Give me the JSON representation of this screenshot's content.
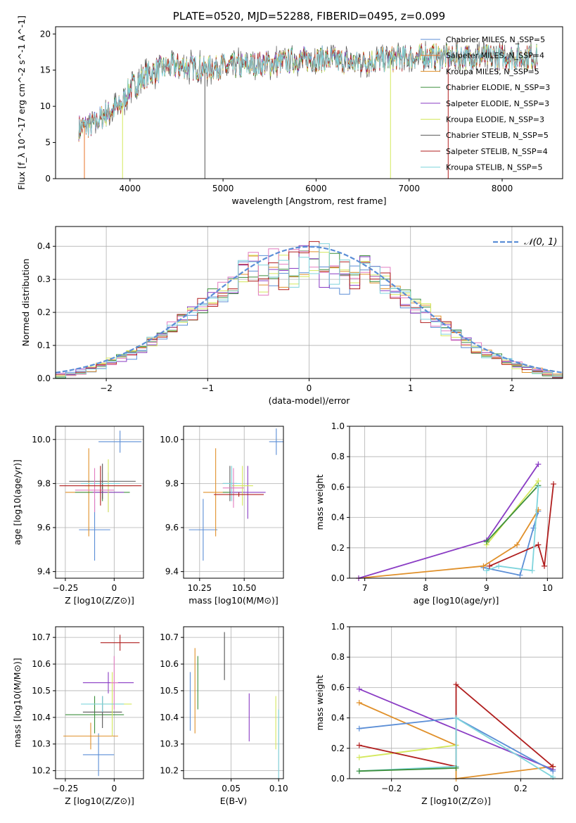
{
  "chart_data": [
    {
      "type": "line",
      "panel": "spectrum",
      "title": "PLATE=0520, MJD=52288, FIBERID=0495, z=0.099",
      "xlabel": "wavelength [Angstrom, rest frame]",
      "ylabel": "Flux [f_λ 10^-17 erg cm^-2 s^-1 A^-1]",
      "xlim": [
        3200,
        8650
      ],
      "ylim": [
        0,
        21
      ],
      "xticks": [
        4000,
        5000,
        6000,
        7000,
        8000
      ],
      "yticks": [
        0,
        5,
        10,
        15,
        20
      ],
      "grid": false,
      "legend_position": "upper-right",
      "continuum": {
        "x": [
          3450,
          3500,
          3600,
          3700,
          3800,
          3900,
          4000,
          4100,
          4200,
          4400,
          4600,
          4800,
          5000,
          5200,
          5400,
          5600,
          5800,
          6000,
          6200,
          6400,
          6600,
          6800,
          7000,
          7200,
          7400,
          7600,
          7800,
          8000,
          8200,
          8380
        ],
        "y": [
          7.0,
          7.2,
          7.5,
          8.5,
          9.5,
          10.0,
          12.5,
          13.5,
          14.5,
          15.5,
          15.5,
          15.2,
          15.5,
          15.6,
          15.8,
          16.0,
          16.5,
          16.5,
          16.4,
          16.0,
          16.3,
          16.5,
          16.8,
          17.0,
          16.8,
          16.9,
          16.8,
          16.8,
          16.8,
          16.9
        ]
      },
      "series": [
        {
          "name": "Chabrier MILES, N_SSP=5"
        },
        {
          "name": "Salpeter MILES, N_SSP=4"
        },
        {
          "name": "Kroupa MILES, N_SSP=5"
        },
        {
          "name": "Chabrier ELODIE, N_SSP=3"
        },
        {
          "name": "Salpeter ELODIE, N_SSP=3"
        },
        {
          "name": "Kroupa ELODIE, N_SSP=3"
        },
        {
          "name": "Chabrier STELIB, N_SSP=5"
        },
        {
          "name": "Salpeter STELIB, N_SSP=4"
        },
        {
          "name": "Kroupa STELIB, N_SSP=5"
        }
      ]
    },
    {
      "type": "line",
      "panel": "residual-histogram",
      "xlabel": "(data-model)/error",
      "ylabel": "Normed distribution",
      "xlim": [
        -2.5,
        2.5
      ],
      "ylim": [
        0,
        0.46
      ],
      "xticks": [
        -2,
        -1,
        0,
        1,
        2
      ],
      "yticks": [
        0.0,
        0.1,
        0.2,
        0.3,
        0.4
      ],
      "grid": true,
      "legend_position": "upper-right",
      "reference_curve": {
        "name": "𝒩(0, 1)",
        "mean": 0,
        "sigma": 1
      }
    },
    {
      "type": "scatter",
      "panel": "age-vs-Z",
      "xlabel": "Z [log10(Z/Z⊙)]",
      "ylabel": "age [log10(age/yr)]",
      "xlim": [
        -0.3,
        0.15
      ],
      "ylim": [
        9.37,
        10.06
      ],
      "xticks": [
        -0.25,
        0.0
      ],
      "yticks": [
        9.4,
        9.6,
        9.8,
        10.0
      ],
      "grid": true,
      "points": [
        {
          "x": -0.1,
          "y": 9.59,
          "xerr": 0.08,
          "yerr": 0.14
        },
        {
          "x": -0.13,
          "y": 9.76,
          "xerr": 0.12,
          "yerr": 0.2
        },
        {
          "x": -0.06,
          "y": 9.76,
          "xerr": 0.14,
          "yerr": 0.04
        },
        {
          "x": -0.06,
          "y": 9.81,
          "xerr": 0.17,
          "yerr": 0.08
        },
        {
          "x": -0.03,
          "y": 9.76,
          "xerr": 0.08,
          "yerr": 0.09
        },
        {
          "x": -0.03,
          "y": 9.79,
          "xerr": 0.12,
          "yerr": 0.12
        },
        {
          "x": -0.07,
          "y": 9.8,
          "xerr": 0.1,
          "yerr": 0.02
        },
        {
          "x": -0.1,
          "y": 9.77,
          "xerr": 0.1,
          "yerr": 0.1
        },
        {
          "x": -0.07,
          "y": 9.79,
          "xerr": 0.21,
          "yerr": 0.09
        },
        {
          "x": 0.03,
          "y": 9.99,
          "xerr": 0.11,
          "yerr": 0.05
        }
      ]
    },
    {
      "type": "scatter",
      "panel": "age-vs-mass",
      "xlabel": "mass [log10(M/M⊙)]",
      "ylabel": "",
      "xlim": [
        10.16,
        10.72
      ],
      "ylim": [
        9.37,
        10.06
      ],
      "xticks": [
        10.25,
        10.5
      ],
      "yticks": [
        9.4,
        9.6,
        9.8,
        10.0
      ],
      "grid": true,
      "points": [
        {
          "x": 10.27,
          "y": 9.59,
          "xerr": 0.08,
          "yerr": 0.14
        },
        {
          "x": 10.34,
          "y": 9.76,
          "xerr": 0.07,
          "yerr": 0.2
        },
        {
          "x": 10.44,
          "y": 9.76,
          "xerr": 0.06,
          "yerr": 0.04
        },
        {
          "x": 10.42,
          "y": 9.8,
          "xerr": 0.04,
          "yerr": 0.08
        },
        {
          "x": 10.52,
          "y": 9.76,
          "xerr": 0.1,
          "yerr": 0.12
        },
        {
          "x": 10.49,
          "y": 9.79,
          "xerr": 0.06,
          "yerr": 0.09
        },
        {
          "x": 10.43,
          "y": 9.8,
          "xerr": 0.05,
          "yerr": 0.08
        },
        {
          "x": 10.44,
          "y": 9.78,
          "xerr": 0.06,
          "yerr": 0.09
        },
        {
          "x": 10.47,
          "y": 9.75,
          "xerr": 0.14,
          "yerr": 0.01
        },
        {
          "x": 10.68,
          "y": 9.99,
          "xerr": 0.04,
          "yerr": 0.06
        }
      ]
    },
    {
      "type": "line",
      "panel": "mass-weight-vs-age",
      "xlabel": "age [log10(age/yr)]",
      "ylabel": "mass weight",
      "xlim": [
        6.75,
        10.25
      ],
      "ylim": [
        0,
        1.0
      ],
      "xticks": [
        7,
        8,
        9,
        10
      ],
      "yticks": [
        0.0,
        0.2,
        0.4,
        0.6,
        0.8,
        1.0
      ],
      "grid": true,
      "series": [
        {
          "name": "Chabrier MILES",
          "x": [
            8.95,
            9.55,
            9.77,
            9.85
          ],
          "y": [
            0.07,
            0.02,
            0.33,
            0.44
          ]
        },
        {
          "name": "Kroupa MILES",
          "x": [
            6.9,
            8.95,
            9.5,
            9.85
          ],
          "y": [
            0.0,
            0.08,
            0.22,
            0.45
          ]
        },
        {
          "name": "Salpeter ELODIE",
          "x": [
            6.9,
            9.0,
            9.85
          ],
          "y": [
            0.0,
            0.25,
            0.75
          ]
        },
        {
          "name": "Kroupa ELODIE",
          "x": [
            9.0,
            9.85
          ],
          "y": [
            0.22,
            0.64
          ]
        },
        {
          "name": "Chabrier ELODIE",
          "x": [
            9.0,
            9.85
          ],
          "y": [
            0.24,
            0.61
          ]
        },
        {
          "name": "Salpeter STELIB",
          "x": [
            9.05,
            9.85,
            9.95,
            10.1
          ],
          "y": [
            0.08,
            0.22,
            0.08,
            0.62
          ]
        },
        {
          "name": "Kroupa STELIB",
          "x": [
            9.0,
            9.2,
            9.75,
            9.85
          ],
          "y": [
            0.05,
            0.08,
            0.05,
            0.6
          ]
        }
      ]
    },
    {
      "type": "scatter",
      "panel": "mass-vs-Z",
      "xlabel": "Z [log10(Z/Z⊙)]",
      "ylabel": "mass [log10(M/M⊙)]",
      "xlim": [
        -0.3,
        0.15
      ],
      "ylim": [
        10.17,
        10.74
      ],
      "xticks": [
        -0.25,
        0.0
      ],
      "yticks": [
        10.2,
        10.3,
        10.4,
        10.5,
        10.6,
        10.7
      ],
      "grid": true,
      "points": [
        {
          "x": -0.08,
          "y": 10.26,
          "xerr": 0.08,
          "yerr": 0.08
        },
        {
          "x": -0.12,
          "y": 10.33,
          "xerr": 0.14,
          "yerr": 0.05
        },
        {
          "x": -0.1,
          "y": 10.41,
          "xerr": 0.15,
          "yerr": 0.07
        },
        {
          "x": -0.06,
          "y": 10.42,
          "xerr": 0.1,
          "yerr": 0.06
        },
        {
          "x": -0.03,
          "y": 10.53,
          "xerr": 0.13,
          "yerr": 0.04
        },
        {
          "x": -0.01,
          "y": 10.45,
          "xerr": 0.1,
          "yerr": 0.12
        },
        {
          "x": -0.06,
          "y": 10.45,
          "xerr": 0.11,
          "yerr": 0.03
        },
        {
          "x": 0.0,
          "y": 10.53,
          "xerr": 0.02,
          "yerr": 0.1
        },
        {
          "x": 0.03,
          "y": 10.68,
          "xerr": 0.1,
          "yerr": 0.03
        }
      ]
    },
    {
      "type": "scatter",
      "panel": "mass-vs-EBV",
      "xlabel": "E(B-V)",
      "ylabel": "",
      "xlim": [
        0.0,
        0.105
      ],
      "ylim": [
        10.17,
        10.74
      ],
      "xticks": [
        0.05,
        0.1
      ],
      "yticks": [
        10.2,
        10.3,
        10.4,
        10.5,
        10.6,
        10.7
      ],
      "grid": true,
      "points": [
        {
          "x": 0.007,
          "y": 10.46,
          "yerr": 0.11
        },
        {
          "x": 0.012,
          "y": 10.5,
          "yerr": 0.16
        },
        {
          "x": 0.015,
          "y": 10.53,
          "yerr": 0.1
        },
        {
          "x": 0.043,
          "y": 10.63,
          "yerr": 0.09
        },
        {
          "x": 0.069,
          "y": 10.4,
          "yerr": 0.09
        },
        {
          "x": 0.097,
          "y": 10.38,
          "yerr": 0.1
        },
        {
          "x": 0.1,
          "y": 10.3,
          "yerr": 0.13
        }
      ]
    },
    {
      "type": "line",
      "panel": "mass-weight-vs-Z",
      "xlabel": "Z [log10(Z/Z⊙)]",
      "ylabel": "mass weight",
      "xlim": [
        -0.33,
        0.33
      ],
      "ylim": [
        0,
        1.0
      ],
      "xticks": [
        -0.2,
        0.0,
        0.2
      ],
      "yticks": [
        0.0,
        0.2,
        0.4,
        0.6,
        0.8,
        1.0
      ],
      "grid": true,
      "series": [
        {
          "name": "Kroupa MILES",
          "x": [
            -0.3,
            0.0,
            0.0,
            0.3
          ],
          "y": [
            0.5,
            0.22,
            0.0,
            0.08
          ]
        },
        {
          "name": "Salpeter ELODIE",
          "x": [
            -0.3,
            0.3
          ],
          "y": [
            0.59,
            0.06
          ]
        },
        {
          "name": "Chabrier MILES",
          "x": [
            -0.3,
            0.0,
            0.3
          ],
          "y": [
            0.33,
            0.4,
            0.05
          ]
        },
        {
          "name": "Kroupa ELODIE",
          "x": [
            -0.3,
            0.0
          ],
          "y": [
            0.14,
            0.22
          ]
        },
        {
          "name": "Salpeter STELIB",
          "x": [
            -0.3,
            0.0,
            0.0,
            0.3
          ],
          "y": [
            0.22,
            0.08,
            0.62,
            0.08
          ]
        },
        {
          "name": "Kroupa STELIB",
          "x": [
            -0.3,
            0.0,
            0.0,
            0.3
          ],
          "y": [
            0.05,
            0.08,
            0.4,
            0.01
          ]
        },
        {
          "name": "Chabrier ELODIE",
          "x": [
            -0.3,
            0.0
          ],
          "y": [
            0.05,
            0.07
          ]
        }
      ]
    }
  ],
  "colors": {
    "Chabrier MILES": "#5b8ed6",
    "Salpeter MILES": "#e8762a",
    "Kroupa MILES": "#e0902a",
    "Chabrier ELODIE": "#3c8f3c",
    "Salpeter ELODIE": "#8a3cc4",
    "Kroupa ELODIE": "#d4e85c",
    "Chabrier STELIB": "#555555",
    "Salpeter STELIB": "#b01e1e",
    "Kroupa STELIB": "#7fd4dc",
    "Pink": "#e27cc0",
    "Gaussian": "#5b8ed6"
  }
}
